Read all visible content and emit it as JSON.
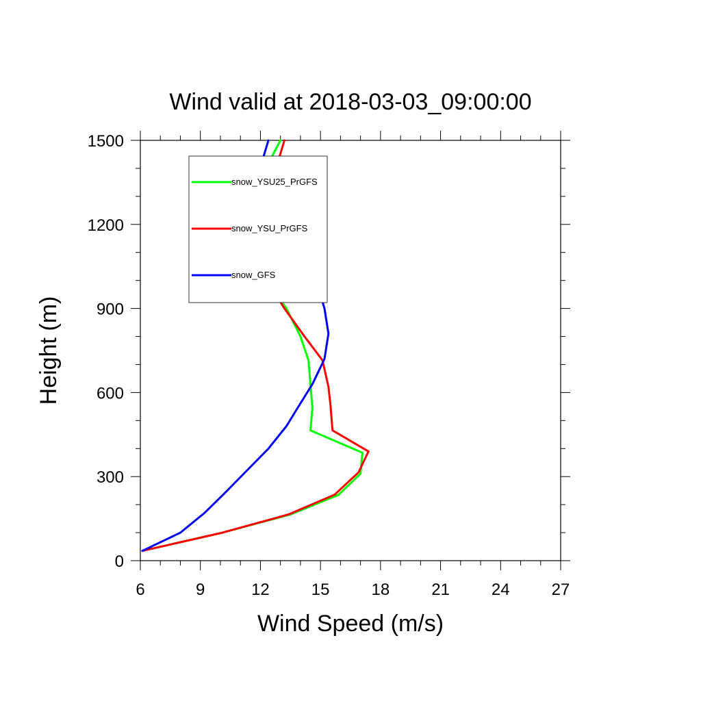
{
  "chart_data": {
    "type": "line",
    "title": "Wind valid at 2018-03-03_09:00:00",
    "xlabel": "Wind Speed (m/s)",
    "ylabel": "Height (m)",
    "xlim": [
      6,
      27
    ],
    "ylim": [
      0,
      1500
    ],
    "xticks": [
      6,
      9,
      12,
      15,
      18,
      21,
      24,
      27
    ],
    "yticks": [
      0,
      300,
      600,
      900,
      1200,
      1500
    ],
    "xtick_labels": [
      "6",
      "9",
      "12",
      "15",
      "18",
      "21",
      "24",
      "27"
    ],
    "ytick_labels": [
      "0",
      "300",
      "600",
      "900",
      "1200",
      "1500"
    ],
    "grid": false,
    "legend_position": "top-left",
    "series": [
      {
        "name": "snow_YSU25_PrGFS",
        "color": "#00ff00",
        "points": [
          [
            6.1,
            35
          ],
          [
            10.1,
            100
          ],
          [
            13.5,
            165
          ],
          [
            15.9,
            235
          ],
          [
            17.0,
            310
          ],
          [
            17.1,
            385
          ],
          [
            14.5,
            465
          ],
          [
            14.6,
            545
          ],
          [
            14.4,
            715
          ],
          [
            14.0,
            800
          ],
          [
            13.3,
            900
          ],
          [
            12.4,
            990
          ],
          [
            11.8,
            1090
          ],
          [
            11.3,
            1200
          ],
          [
            11.5,
            1300
          ],
          [
            12.3,
            1405
          ],
          [
            13.0,
            1500
          ]
        ]
      },
      {
        "name": "snow_YSU_PrGFS",
        "color": "#ff0000",
        "points": [
          [
            6.1,
            35
          ],
          [
            10.1,
            100
          ],
          [
            13.4,
            165
          ],
          [
            15.7,
            235
          ],
          [
            16.9,
            315
          ],
          [
            17.4,
            390
          ],
          [
            15.6,
            465
          ],
          [
            15.5,
            555
          ],
          [
            15.4,
            620
          ],
          [
            15.1,
            715
          ],
          [
            14.2,
            800
          ],
          [
            13.2,
            900
          ],
          [
            12.4,
            990
          ],
          [
            11.9,
            1090
          ],
          [
            11.7,
            1200
          ],
          [
            11.8,
            1300
          ],
          [
            12.8,
            1405
          ],
          [
            13.2,
            1500
          ]
        ]
      },
      {
        "name": "snow_GFS",
        "color": "#0000ff",
        "points": [
          [
            6.1,
            35
          ],
          [
            8.0,
            100
          ],
          [
            9.2,
            170
          ],
          [
            10.2,
            240
          ],
          [
            11.3,
            320
          ],
          [
            12.4,
            400
          ],
          [
            13.3,
            480
          ],
          [
            13.9,
            550
          ],
          [
            14.6,
            630
          ],
          [
            15.2,
            720
          ],
          [
            15.4,
            810
          ],
          [
            15.2,
            900
          ],
          [
            14.8,
            995
          ],
          [
            13.9,
            1090
          ],
          [
            13.1,
            1175
          ],
          [
            12.0,
            1295
          ],
          [
            12.0,
            1405
          ],
          [
            12.4,
            1500
          ]
        ]
      }
    ]
  }
}
